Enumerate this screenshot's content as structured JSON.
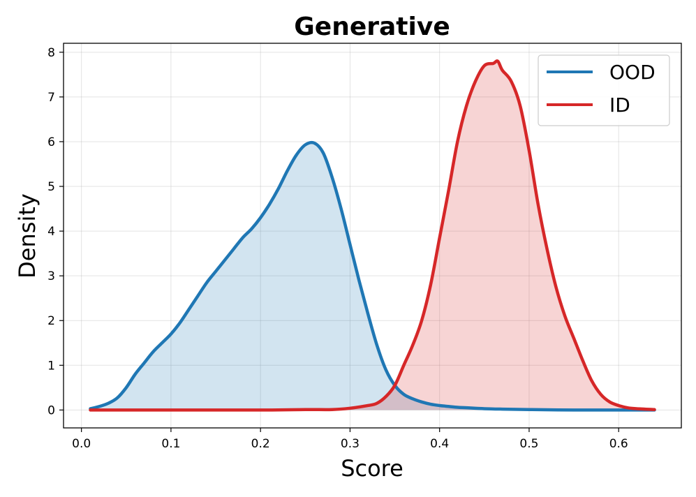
{
  "chart_data": {
    "type": "area",
    "title": "Generative",
    "xlabel": "Score",
    "ylabel": "Density",
    "xlim": [
      -0.02,
      0.67
    ],
    "ylim": [
      -0.4,
      8.2
    ],
    "xticks": [
      0.0,
      0.1,
      0.2,
      0.3,
      0.4,
      0.5,
      0.6
    ],
    "xtick_labels": [
      "0.0",
      "0.1",
      "0.2",
      "0.3",
      "0.4",
      "0.5",
      "0.6"
    ],
    "yticks": [
      0,
      1,
      2,
      3,
      4,
      5,
      6,
      7,
      8
    ],
    "ytick_labels": [
      "0",
      "1",
      "2",
      "3",
      "4",
      "5",
      "6",
      "7",
      "8"
    ],
    "grid": true,
    "legend_position": "top-right",
    "series": [
      {
        "name": "OOD",
        "color": "#1f77b4",
        "fill": "#cfe1ef",
        "x": [
          0.01,
          0.02,
          0.03,
          0.04,
          0.05,
          0.06,
          0.07,
          0.08,
          0.09,
          0.1,
          0.11,
          0.12,
          0.13,
          0.14,
          0.15,
          0.16,
          0.17,
          0.18,
          0.19,
          0.2,
          0.21,
          0.22,
          0.23,
          0.24,
          0.25,
          0.26,
          0.27,
          0.28,
          0.29,
          0.3,
          0.31,
          0.32,
          0.33,
          0.34,
          0.35,
          0.36,
          0.37,
          0.38,
          0.39,
          0.4,
          0.41,
          0.42,
          0.43,
          0.45,
          0.47,
          0.5,
          0.55,
          0.6,
          0.64
        ],
        "y": [
          0.03,
          0.08,
          0.15,
          0.27,
          0.5,
          0.8,
          1.05,
          1.3,
          1.5,
          1.7,
          1.95,
          2.25,
          2.55,
          2.85,
          3.1,
          3.35,
          3.6,
          3.85,
          4.05,
          4.3,
          4.6,
          4.95,
          5.35,
          5.7,
          5.93,
          5.97,
          5.75,
          5.2,
          4.5,
          3.7,
          2.9,
          2.15,
          1.45,
          0.9,
          0.55,
          0.35,
          0.25,
          0.18,
          0.13,
          0.1,
          0.08,
          0.06,
          0.05,
          0.03,
          0.02,
          0.01,
          0.0,
          0.0,
          0.0
        ]
      },
      {
        "name": "ID",
        "color": "#d62728",
        "fill": "#f4cfd0",
        "x": [
          0.01,
          0.1,
          0.2,
          0.25,
          0.28,
          0.3,
          0.32,
          0.33,
          0.34,
          0.35,
          0.36,
          0.37,
          0.38,
          0.39,
          0.4,
          0.41,
          0.42,
          0.43,
          0.44,
          0.45,
          0.46,
          0.465,
          0.47,
          0.48,
          0.49,
          0.5,
          0.51,
          0.52,
          0.53,
          0.54,
          0.55,
          0.56,
          0.57,
          0.58,
          0.59,
          0.6,
          0.61,
          0.62,
          0.64
        ],
        "y": [
          0.0,
          0.0,
          0.0,
          0.01,
          0.01,
          0.04,
          0.1,
          0.15,
          0.3,
          0.55,
          1.0,
          1.45,
          2.0,
          2.8,
          3.85,
          4.9,
          6.0,
          6.8,
          7.35,
          7.7,
          7.75,
          7.8,
          7.6,
          7.35,
          6.8,
          5.8,
          4.6,
          3.6,
          2.75,
          2.1,
          1.6,
          1.1,
          0.65,
          0.35,
          0.18,
          0.1,
          0.05,
          0.03,
          0.01
        ]
      }
    ]
  }
}
